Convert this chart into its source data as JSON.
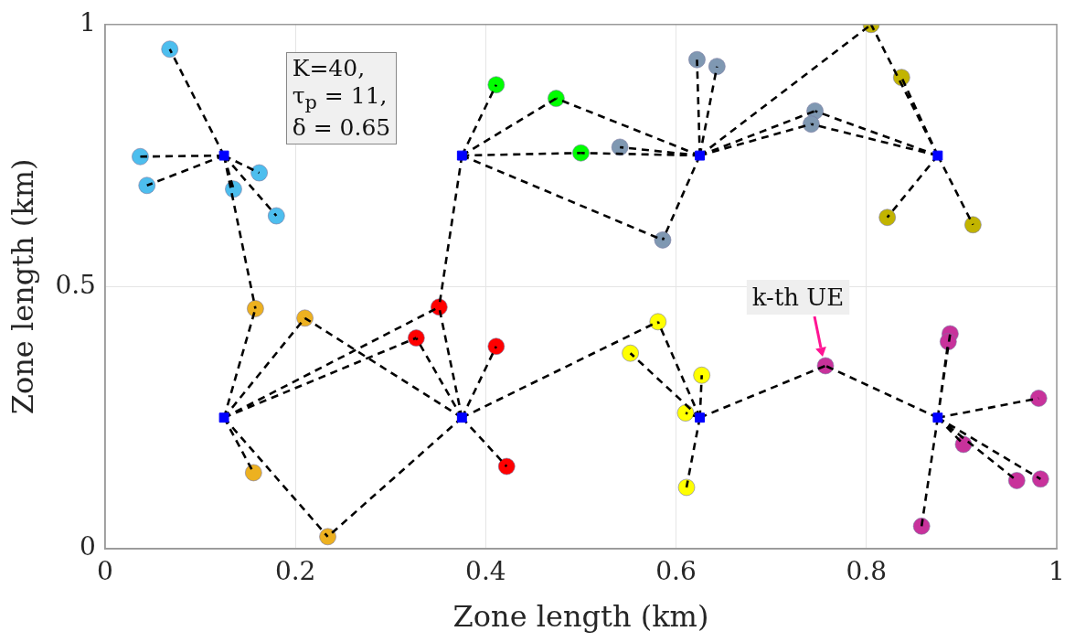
{
  "chart_data": {
    "type": "scatter",
    "xlabel": "Zone length (km)",
    "ylabel": "Zone length (km)",
    "xlim": [
      0,
      1
    ],
    "ylim": [
      0,
      1
    ],
    "xticks": [
      0,
      0.2,
      0.4,
      0.6,
      0.8,
      1
    ],
    "yticks": [
      0,
      0.5,
      1
    ],
    "grid": true,
    "legend": false,
    "marker": "circle",
    "annotations": [
      "K=40,\nτ$_{p}$ = 11,\nδ = 0.65",
      {
        "text": "k-th UE",
        "x": 0.757,
        "y": 0.349
      }
    ],
    "series": [
      {
        "color": "#4dbeee",
        "x": [
          0.068,
          0.037,
          0.044,
          0.135,
          0.162,
          0.18
        ],
        "values": [
          0.953,
          0.748,
          0.693,
          0.686,
          0.717,
          0.635
        ]
      },
      {
        "color": "#edb120",
        "x": [
          0.158,
          0.21,
          0.156,
          0.234
        ],
        "values": [
          0.458,
          0.44,
          0.145,
          0.023
        ]
      },
      {
        "color": "#ff0000",
        "x": [
          0.351,
          0.327,
          0.411,
          0.422
        ],
        "values": [
          0.461,
          0.402,
          0.386,
          0.157
        ]
      },
      {
        "color": "#00ff00",
        "x": [
          0.411,
          0.474,
          0.5
        ],
        "values": [
          0.885,
          0.859,
          0.755
        ]
      },
      {
        "color": "#7f98b2",
        "x": [
          0.622,
          0.643,
          0.541,
          0.746,
          0.742,
          0.586
        ],
        "values": [
          0.933,
          0.92,
          0.766,
          0.835,
          0.81,
          0.589
        ]
      },
      {
        "color": "#c2b400",
        "x": [
          0.805,
          0.837,
          0.822,
          0.912
        ],
        "values": [
          1.0,
          0.899,
          0.632,
          0.618
        ]
      },
      {
        "color": "#ffff00",
        "x": [
          0.581,
          0.552,
          0.627,
          0.61,
          0.611
        ],
        "values": [
          0.433,
          0.373,
          0.331,
          0.259,
          0.117
        ]
      },
      {
        "color": "#c8329b",
        "x": [
          0.757,
          0.888,
          0.886,
          0.981,
          0.902,
          0.958,
          0.983,
          0.858
        ],
        "values": [
          0.349,
          0.41,
          0.395,
          0.287,
          0.199,
          0.13,
          0.133,
          0.043
        ]
      },
      {
        "type": "line",
        "line_style": "dashed",
        "marker": "none",
        "color": "#000000",
        "x": [
          0.125,
          0.068,
          0.125,
          0.037,
          0.125,
          0.044,
          0.125,
          0.135,
          0.125,
          0.162,
          0.125,
          0.18,
          0.125,
          0.158
        ],
        "values": [
          0.75,
          0.953,
          0.75,
          0.748,
          0.75,
          0.693,
          0.75,
          0.686,
          0.75,
          0.717,
          0.75,
          0.635,
          0.75,
          0.458
        ]
      },
      {
        "type": "line",
        "line_style": "dashed",
        "marker": "none",
        "color": "#000000",
        "x": [
          0.375,
          0.411,
          0.375,
          0.474,
          0.375,
          0.5,
          0.375,
          0.586,
          0.375,
          0.351
        ],
        "values": [
          0.75,
          0.885,
          0.75,
          0.859,
          0.75,
          0.755,
          0.75,
          0.589,
          0.75,
          0.461
        ]
      },
      {
        "type": "line",
        "line_style": "dashed",
        "marker": "none",
        "color": "#000000",
        "x": [
          0.625,
          0.474,
          0.625,
          0.5,
          0.625,
          0.541,
          0.625,
          0.622,
          0.625,
          0.643,
          0.625,
          0.746,
          0.625,
          0.742,
          0.625,
          0.586,
          0.625,
          0.805
        ],
        "values": [
          0.75,
          0.859,
          0.75,
          0.755,
          0.75,
          0.766,
          0.75,
          0.933,
          0.75,
          0.92,
          0.75,
          0.835,
          0.75,
          0.81,
          0.75,
          0.589,
          0.75,
          1.0
        ]
      },
      {
        "type": "line",
        "line_style": "dashed",
        "marker": "none",
        "color": "#000000",
        "x": [
          0.875,
          0.746,
          0.875,
          0.742,
          0.875,
          0.805,
          0.875,
          0.837,
          0.875,
          0.822,
          0.875,
          0.912
        ],
        "values": [
          0.75,
          0.835,
          0.75,
          0.81,
          0.75,
          1.0,
          0.75,
          0.899,
          0.75,
          0.632,
          0.75,
          0.618
        ]
      },
      {
        "type": "line",
        "line_style": "dashed",
        "marker": "none",
        "color": "#000000",
        "x": [
          0.125,
          0.158,
          0.125,
          0.21,
          0.125,
          0.156,
          0.125,
          0.234,
          0.125,
          0.327,
          0.125,
          0.351
        ],
        "values": [
          0.25,
          0.458,
          0.25,
          0.44,
          0.25,
          0.145,
          0.25,
          0.023,
          0.25,
          0.402,
          0.25,
          0.461
        ]
      },
      {
        "type": "line",
        "line_style": "dashed",
        "marker": "none",
        "color": "#000000",
        "x": [
          0.375,
          0.21,
          0.375,
          0.234,
          0.375,
          0.327,
          0.375,
          0.351,
          0.375,
          0.411,
          0.375,
          0.422,
          0.375,
          0.581
        ],
        "values": [
          0.25,
          0.44,
          0.25,
          0.023,
          0.25,
          0.402,
          0.25,
          0.461,
          0.25,
          0.386,
          0.25,
          0.157,
          0.25,
          0.433
        ]
      },
      {
        "type": "line",
        "line_style": "dashed",
        "marker": "none",
        "color": "#000000",
        "x": [
          0.625,
          0.581,
          0.625,
          0.552,
          0.625,
          0.627,
          0.625,
          0.61,
          0.625,
          0.611,
          0.625,
          0.757
        ],
        "values": [
          0.25,
          0.433,
          0.25,
          0.373,
          0.25,
          0.331,
          0.25,
          0.259,
          0.25,
          0.117,
          0.25,
          0.349
        ]
      },
      {
        "type": "line",
        "line_style": "dashed",
        "marker": "none",
        "color": "#000000",
        "x": [
          0.875,
          0.757,
          0.875,
          0.888,
          0.875,
          0.886,
          0.875,
          0.981,
          0.875,
          0.902,
          0.875,
          0.958,
          0.875,
          0.983,
          0.875,
          0.858
        ],
        "values": [
          0.25,
          0.349,
          0.25,
          0.41,
          0.25,
          0.395,
          0.25,
          0.287,
          0.25,
          0.199,
          0.25,
          0.13,
          0.25,
          0.133,
          0.25,
          0.043
        ]
      },
      {
        "marker": "square",
        "color": "#0000ff",
        "x": [
          0.125,
          0.375,
          0.625,
          0.875,
          0.125,
          0.375,
          0.625,
          0.875
        ],
        "values": [
          0.75,
          0.75,
          0.75,
          0.75,
          0.25,
          0.25,
          0.25,
          0.25
        ]
      }
    ]
  }
}
